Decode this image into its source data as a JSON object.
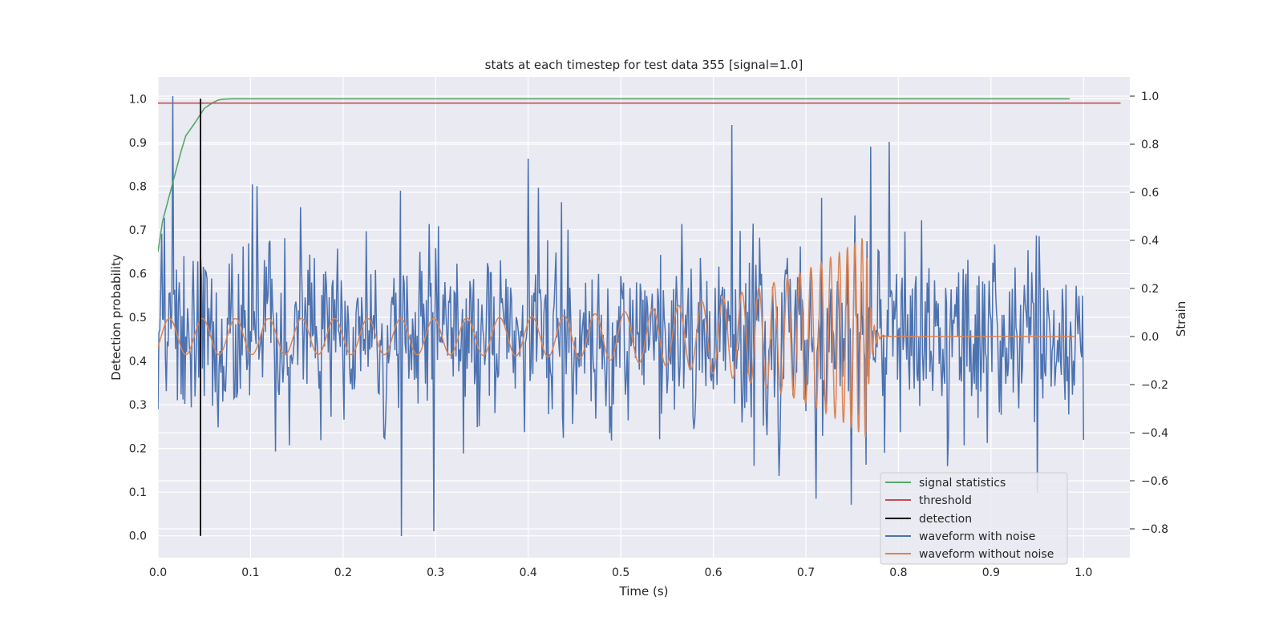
{
  "chart_data": {
    "type": "line",
    "title": "stats at each timestep for test data 355 [signal=1.0]",
    "xlabel": "Time (s)",
    "ylabel": "Detection probability",
    "y2label": "Strain",
    "xlim": [
      0.0,
      1.05
    ],
    "ylim": [
      -0.05,
      1.05
    ],
    "y2lim": [
      -0.92,
      1.08
    ],
    "xticks": [
      "0.0",
      "0.1",
      "0.2",
      "0.3",
      "0.4",
      "0.5",
      "0.6",
      "0.7",
      "0.8",
      "0.9",
      "1.0"
    ],
    "yticks": [
      "0.0",
      "0.1",
      "0.2",
      "0.3",
      "0.4",
      "0.5",
      "0.6",
      "0.7",
      "0.8",
      "0.9",
      "1.0"
    ],
    "y2ticks": [
      "−0.8",
      "−0.6",
      "−0.4",
      "−0.2",
      "0.0",
      "0.2",
      "0.4",
      "0.6",
      "0.8",
      "1.0"
    ],
    "grid": true,
    "legend_position": "lower-right",
    "colors": {
      "signal_statistics": "#55a868",
      "threshold": "#c44e52",
      "detection": "#000000",
      "waveform_with_noise": "#4c72b0",
      "waveform_without_noise": "#dd8452",
      "plot_bg": "#eaeaf2",
      "grid": "#ffffff"
    },
    "series": [
      {
        "name": "signal statistics",
        "axis": "left",
        "x": [
          0.0,
          0.005,
          0.01,
          0.015,
          0.02,
          0.025,
          0.03,
          0.04,
          0.05,
          0.055,
          0.06,
          0.065,
          0.07,
          0.08,
          0.1,
          0.2,
          0.4,
          0.6,
          0.8,
          0.985
        ],
        "y": [
          0.65,
          0.72,
          0.76,
          0.8,
          0.84,
          0.88,
          0.915,
          0.945,
          0.978,
          0.985,
          0.992,
          0.997,
          0.999,
          1.0,
          1.0,
          1.0,
          1.0,
          1.0,
          1.0,
          1.0
        ]
      },
      {
        "name": "threshold",
        "axis": "left",
        "x": [
          0.0,
          1.04
        ],
        "y": [
          0.99,
          0.99
        ]
      },
      {
        "name": "detection",
        "axis": "left",
        "x": [
          0.046,
          0.046
        ],
        "y": [
          0.0,
          1.0
        ]
      },
      {
        "name": "waveform with noise",
        "axis": "right",
        "x_range": [
          0.0,
          1.0
        ],
        "n_samples": 1000,
        "amplitude_std": 0.2,
        "peaks": [
          {
            "x": 0.016,
            "y": 1.0
          },
          {
            "x": 0.263,
            "y": -0.83
          },
          {
            "x": 0.298,
            "y": -0.81
          },
          {
            "x": 0.4,
            "y": 0.74
          },
          {
            "x": 0.62,
            "y": 0.88
          },
          {
            "x": 0.77,
            "y": 0.79
          },
          {
            "x": 0.79,
            "y": 0.81
          },
          {
            "x": 0.95,
            "y": -0.65
          },
          {
            "x": 1.0,
            "y": -0.43
          }
        ]
      },
      {
        "name": "waveform without noise",
        "axis": "right",
        "x_range": [
          0.0,
          0.99
        ],
        "amplitude_start": 0.075,
        "amplitude_end": 0.42,
        "frequency_start_hz": 28,
        "frequency_end_hz": 140,
        "merger_time": 0.765,
        "ringdown_value": 0.0
      }
    ]
  }
}
